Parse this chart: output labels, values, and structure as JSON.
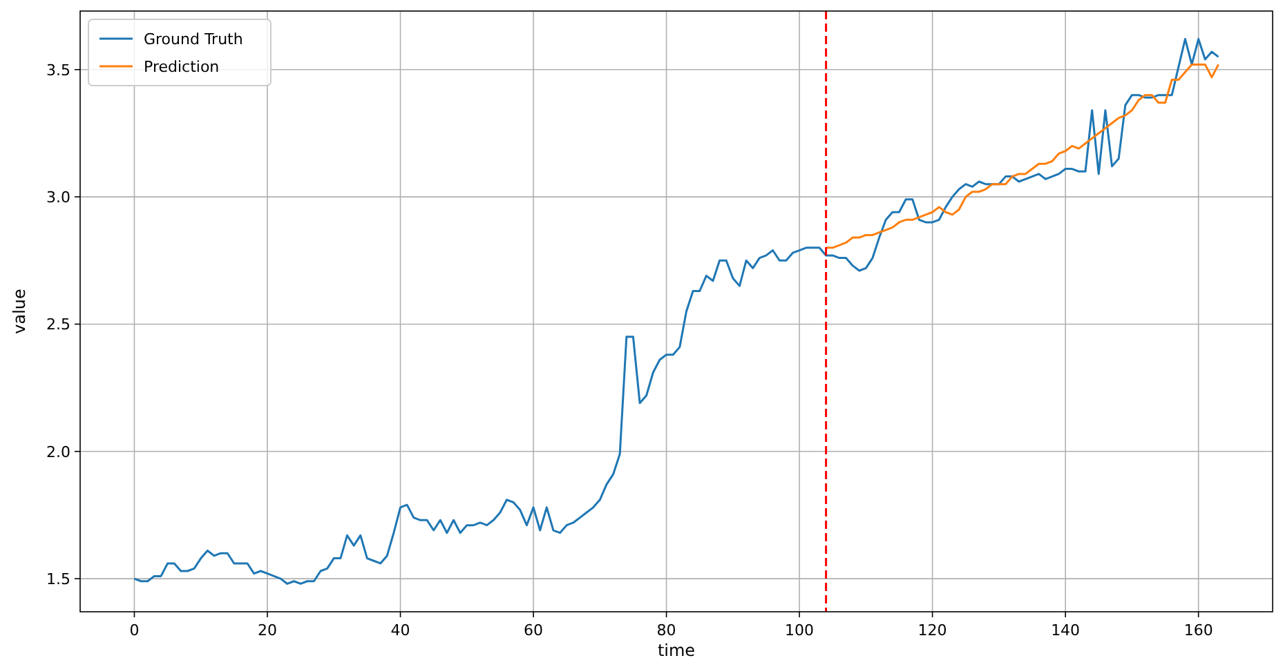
{
  "chart_data": {
    "type": "line",
    "xlabel": "time",
    "ylabel": "value",
    "xlim": [
      -8.15,
      171.15
    ],
    "ylim": [
      1.37,
      3.73
    ],
    "xticks": [
      0,
      20,
      40,
      60,
      80,
      100,
      120,
      140,
      160
    ],
    "yticks": [
      1.5,
      {
        "value": 2,
        "label": "2.0"
      },
      2.5,
      {
        "value": 3,
        "label": "3.0"
      },
      3.5
    ],
    "grid": true,
    "legend": "top left",
    "line_style": "solid",
    "ref_lines": [
      {
        "axis": "x",
        "value": 104,
        "color": "#ff0000",
        "line_style": "dashed"
      }
    ],
    "series": [
      {
        "name": "Ground Truth",
        "color": "#1f77b4",
        "x": [
          0,
          1,
          2,
          3,
          4,
          5,
          6,
          7,
          8,
          9,
          10,
          11,
          12,
          13,
          14,
          15,
          16,
          17,
          18,
          19,
          20,
          21,
          22,
          23,
          24,
          25,
          26,
          27,
          28,
          29,
          30,
          31,
          32,
          33,
          34,
          35,
          36,
          37,
          38,
          39,
          40,
          41,
          42,
          43,
          44,
          45,
          46,
          47,
          48,
          49,
          50,
          51,
          52,
          53,
          54,
          55,
          56,
          57,
          58,
          59,
          60,
          61,
          62,
          63,
          64,
          65,
          66,
          67,
          68,
          69,
          70,
          71,
          72,
          73,
          74,
          75,
          76,
          77,
          78,
          79,
          80,
          81,
          82,
          83,
          84,
          85,
          86,
          87,
          88,
          89,
          90,
          91,
          92,
          93,
          94,
          95,
          96,
          97,
          98,
          99,
          100,
          101,
          102,
          103,
          104,
          105,
          106,
          107,
          108,
          109,
          110,
          111,
          112,
          113,
          114,
          115,
          116,
          117,
          118,
          119,
          120,
          121,
          122,
          123,
          124,
          125,
          126,
          127,
          128,
          129,
          130,
          131,
          132,
          133,
          134,
          135,
          136,
          137,
          138,
          139,
          140,
          141,
          142,
          143,
          144,
          145,
          146,
          147,
          148,
          149,
          150,
          151,
          152,
          153,
          154,
          155,
          156,
          157,
          158,
          159,
          160,
          161,
          162,
          163
        ],
        "values": [
          1.5,
          1.49,
          1.49,
          1.51,
          1.51,
          1.56,
          1.56,
          1.53,
          1.53,
          1.54,
          1.58,
          1.61,
          1.59,
          1.6,
          1.6,
          1.56,
          1.56,
          1.56,
          1.52,
          1.53,
          1.52,
          1.51,
          1.5,
          1.48,
          1.49,
          1.48,
          1.49,
          1.49,
          1.53,
          1.54,
          1.58,
          1.58,
          1.67,
          1.63,
          1.67,
          1.58,
          1.57,
          1.56,
          1.59,
          1.68,
          1.78,
          1.79,
          1.74,
          1.73,
          1.73,
          1.69,
          1.73,
          1.68,
          1.73,
          1.68,
          1.71,
          1.71,
          1.72,
          1.71,
          1.73,
          1.76,
          1.81,
          1.8,
          1.77,
          1.71,
          1.78,
          1.69,
          1.78,
          1.69,
          1.68,
          1.71,
          1.72,
          1.74,
          1.76,
          1.78,
          1.81,
          1.87,
          1.91,
          1.99,
          2.45,
          2.45,
          2.19,
          2.22,
          2.31,
          2.36,
          2.38,
          2.38,
          2.41,
          2.55,
          2.63,
          2.63,
          2.69,
          2.67,
          2.75,
          2.75,
          2.68,
          2.65,
          2.75,
          2.72,
          2.76,
          2.77,
          2.79,
          2.75,
          2.75,
          2.78,
          2.79,
          2.8,
          2.8,
          2.8,
          2.77,
          2.77,
          2.76,
          2.76,
          2.73,
          2.71,
          2.72,
          2.76,
          2.84,
          2.91,
          2.94,
          2.94,
          2.99,
          2.99,
          2.91,
          2.9,
          2.9,
          2.91,
          2.96,
          3.0,
          3.03,
          3.05,
          3.04,
          3.06,
          3.05,
          3.05,
          3.05,
          3.08,
          3.08,
          3.06,
          3.07,
          3.08,
          3.09,
          3.07,
          3.08,
          3.09,
          3.11,
          3.11,
          3.1,
          3.1,
          3.34,
          3.09,
          3.34,
          3.12,
          3.15,
          3.36,
          3.4,
          3.4,
          3.39,
          3.39,
          3.4,
          3.4,
          3.4,
          3.51,
          3.62,
          3.52,
          3.62,
          3.54,
          3.57,
          3.55
        ]
      },
      {
        "name": "Prediction",
        "color": "#ff7f0e",
        "x": [
          104,
          105,
          106,
          107,
          108,
          109,
          110,
          111,
          112,
          113,
          114,
          115,
          116,
          117,
          118,
          119,
          120,
          121,
          122,
          123,
          124,
          125,
          126,
          127,
          128,
          129,
          130,
          131,
          132,
          133,
          134,
          135,
          136,
          137,
          138,
          139,
          140,
          141,
          142,
          143,
          144,
          145,
          146,
          147,
          148,
          149,
          150,
          151,
          152,
          153,
          154,
          155,
          156,
          157,
          158,
          159,
          160,
          161,
          162,
          163
        ],
        "values": [
          2.8,
          2.8,
          2.81,
          2.82,
          2.84,
          2.84,
          2.85,
          2.85,
          2.86,
          2.87,
          2.88,
          2.9,
          2.91,
          2.91,
          2.92,
          2.93,
          2.94,
          2.96,
          2.94,
          2.93,
          2.95,
          3.0,
          3.02,
          3.02,
          3.03,
          3.05,
          3.05,
          3.05,
          3.08,
          3.09,
          3.09,
          3.11,
          3.13,
          3.13,
          3.14,
          3.17,
          3.18,
          3.2,
          3.19,
          3.21,
          3.23,
          3.25,
          3.27,
          3.29,
          3.31,
          3.32,
          3.34,
          3.38,
          3.4,
          3.4,
          3.37,
          3.37,
          3.46,
          3.46,
          3.49,
          3.52,
          3.52,
          3.52,
          3.47,
          3.52
        ]
      }
    ]
  }
}
